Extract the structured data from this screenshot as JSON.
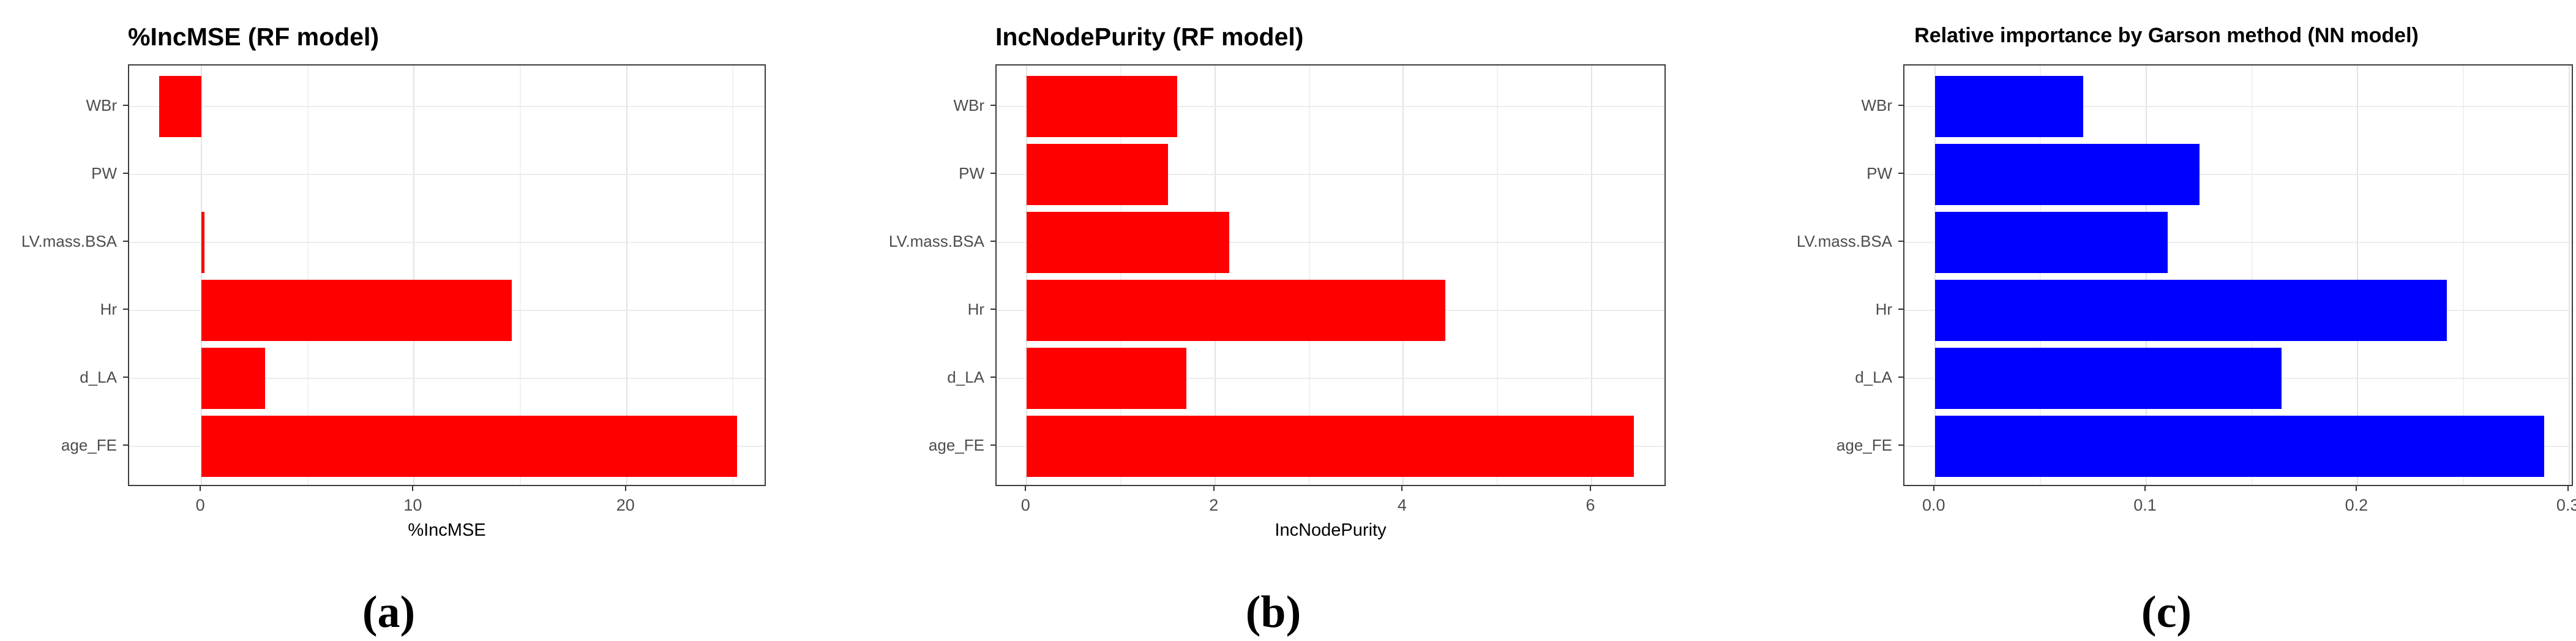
{
  "figure": {
    "background": "#ffffff",
    "description": "Three horizontal bar charts of variable importance"
  },
  "style": {
    "rf_bar_color": "#ff0000",
    "nn_bar_color": "#0000ff",
    "panel_border_color": "#3d3d3d",
    "major_grid_color": "#e3e3e3",
    "minor_grid_color": "#f1f1f1",
    "tick_label_color": "#4d4d4d",
    "title_color": "#000000"
  },
  "chart_data": [
    {
      "type": "bar",
      "orientation": "horizontal",
      "title": "%IncMSE (RF model)",
      "xlabel": "%IncMSE",
      "caption": "(a)",
      "categories_top_to_bottom": [
        "WBr",
        "PW",
        "LV.mass.BSA",
        "Hr",
        "d_LA",
        "age_FE"
      ],
      "values": [
        -2.0,
        0,
        0.15,
        14.6,
        3.0,
        25.2
      ],
      "bar_color": "#ff0000",
      "xlim": [
        -3.4,
        26.6
      ],
      "x_major_ticks": [
        0,
        10,
        20
      ],
      "x_tick_labels": [
        "0",
        "10",
        "20"
      ],
      "x_minor_gridlines": [
        5,
        15,
        25
      ],
      "grid": true,
      "legend": "none"
    },
    {
      "type": "bar",
      "orientation": "horizontal",
      "title": "IncNodePurity (RF model)",
      "xlabel": "IncNodePurity",
      "caption": "(b)",
      "categories_top_to_bottom": [
        "WBr",
        "PW",
        "LV.mass.BSA",
        "Hr",
        "d_LA",
        "age_FE"
      ],
      "values": [
        1.6,
        1.5,
        2.15,
        4.45,
        1.7,
        6.45
      ],
      "bar_color": "#ff0000",
      "xlim": [
        -0.32,
        6.8
      ],
      "x_major_ticks": [
        0,
        2,
        4,
        6
      ],
      "x_tick_labels": [
        "0",
        "2",
        "4",
        "6"
      ],
      "x_minor_gridlines": [
        1,
        3,
        5
      ],
      "grid": true,
      "legend": "none"
    },
    {
      "type": "bar",
      "orientation": "horizontal",
      "title": "Relative importance by Garson method (NN model)",
      "xlabel": "",
      "caption": "(c)",
      "categories_top_to_bottom": [
        "WBr",
        "PW",
        "LV.mass.BSA",
        "Hr",
        "d_LA",
        "age_FE"
      ],
      "values": [
        0.07,
        0.125,
        0.11,
        0.242,
        0.164,
        0.288
      ],
      "bar_color": "#0000ff",
      "xlim": [
        -0.0144,
        0.3024
      ],
      "x_major_ticks": [
        0,
        0.1,
        0.2,
        0.3
      ],
      "x_tick_labels": [
        "0.0",
        "0.1",
        "0.2",
        "0.3"
      ],
      "x_minor_gridlines": [
        0.05,
        0.15,
        0.25
      ],
      "grid": true,
      "legend": "none"
    }
  ]
}
